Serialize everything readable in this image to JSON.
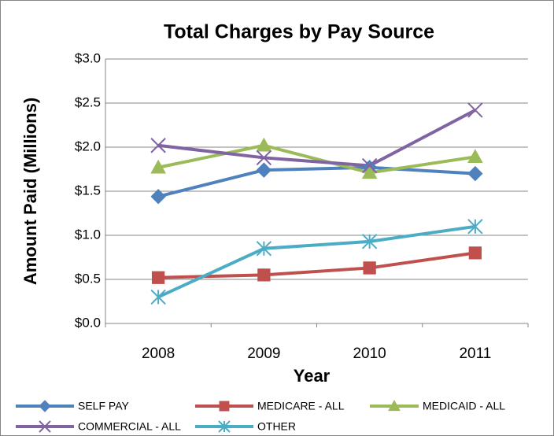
{
  "chart_data": {
    "type": "line",
    "title": "Total Charges by Pay Source",
    "x_label": "Year",
    "y_label": "Amount Paid (Millions)",
    "categories": [
      "2008",
      "2009",
      "2010",
      "2011"
    ],
    "series": [
      {
        "name": "SELF PAY",
        "color": "#4f81bd",
        "marker": "diamond",
        "values": [
          1.44,
          1.74,
          1.77,
          1.7
        ]
      },
      {
        "name": "MEDICARE - ALL",
        "color": "#c0504d",
        "marker": "square",
        "values": [
          0.52,
          0.55,
          0.63,
          0.8
        ]
      },
      {
        "name": "MEDICAID - ALL",
        "color": "#9bbb59",
        "marker": "triangle",
        "values": [
          1.77,
          2.02,
          1.71,
          1.89
        ]
      },
      {
        "name": "COMMERCIAL - ALL",
        "color": "#8064a2",
        "marker": "x",
        "values": [
          2.02,
          1.88,
          1.79,
          2.42
        ]
      },
      {
        "name": "OTHER",
        "color": "#4bacc6",
        "marker": "star",
        "values": [
          0.3,
          0.85,
          0.93,
          1.1
        ]
      }
    ],
    "ylim": [
      0,
      3
    ],
    "yticks": [
      {
        "value": 0,
        "label": "$0.0"
      },
      {
        "value": 0.5,
        "label": "$0.5"
      },
      {
        "value": 1,
        "label": "$1.0"
      },
      {
        "value": 1.5,
        "label": "$1.5"
      },
      {
        "value": 2,
        "label": "$2.0"
      },
      {
        "value": 2.5,
        "label": "$2.5"
      },
      {
        "value": 3,
        "label": "$3.0"
      }
    ],
    "grid": true,
    "legend": "bottom"
  }
}
